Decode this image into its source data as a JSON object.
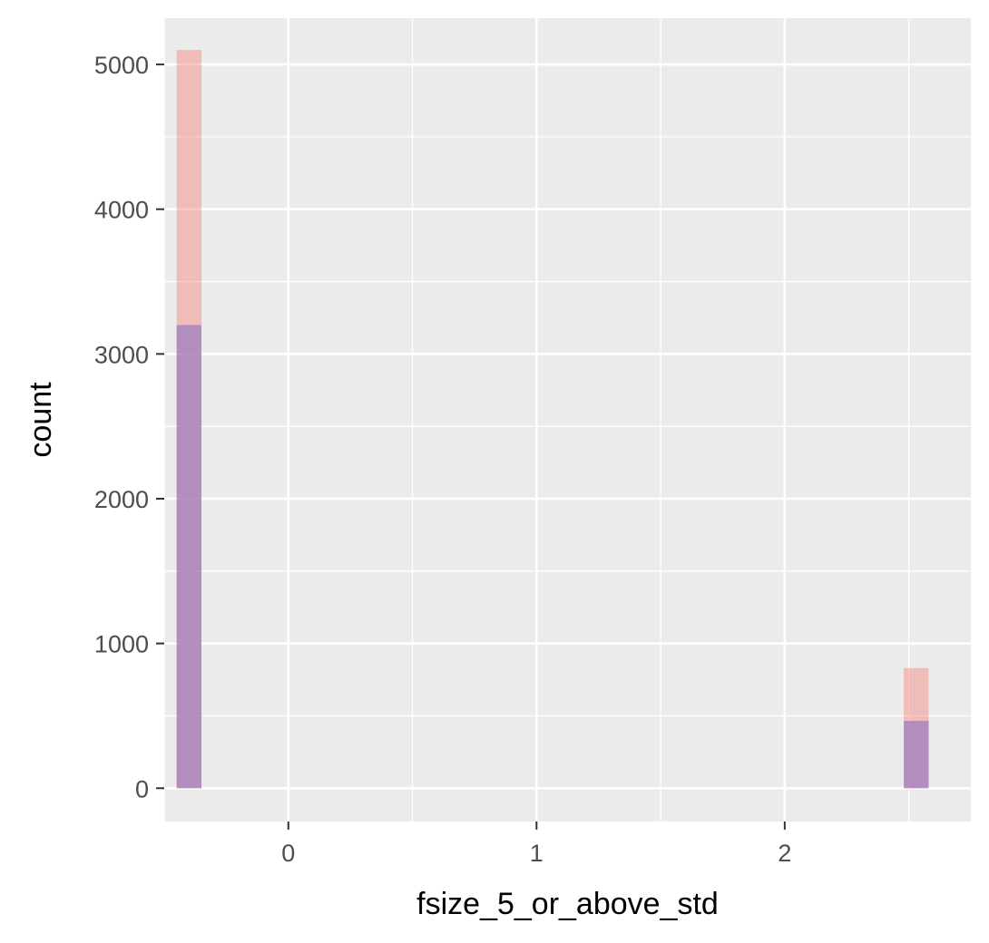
{
  "chart_data": {
    "type": "bar",
    "title": "",
    "xlabel": "fsize_5_or_above_std",
    "ylabel": "count",
    "xlim": [
      -0.5,
      2.75
    ],
    "ylim": [
      -230,
      5320
    ],
    "x_ticks": [
      0,
      1,
      2
    ],
    "x_minor_ticks": [
      -0.5,
      0.5,
      1.5,
      2.5
    ],
    "y_ticks": [
      0,
      1000,
      2000,
      3000,
      4000,
      5000
    ],
    "y_minor_ticks": [
      500,
      1500,
      2500,
      3500,
      4500
    ],
    "bin_width": 0.1,
    "grid": true,
    "background": "#ebebeb",
    "series": [
      {
        "color": "#f8766d",
        "alpha": 0.4,
        "bins": [
          {
            "x_start": -0.45,
            "x_end": -0.35,
            "value": 5100
          },
          {
            "x_start": 2.48,
            "x_end": 2.58,
            "value": 830
          }
        ]
      },
      {
        "color": "#9e7fc2",
        "alpha": 0.75,
        "bins": [
          {
            "x_start": -0.45,
            "x_end": -0.35,
            "value": 3200
          },
          {
            "x_start": 2.48,
            "x_end": 2.58,
            "value": 465
          }
        ]
      }
    ]
  }
}
